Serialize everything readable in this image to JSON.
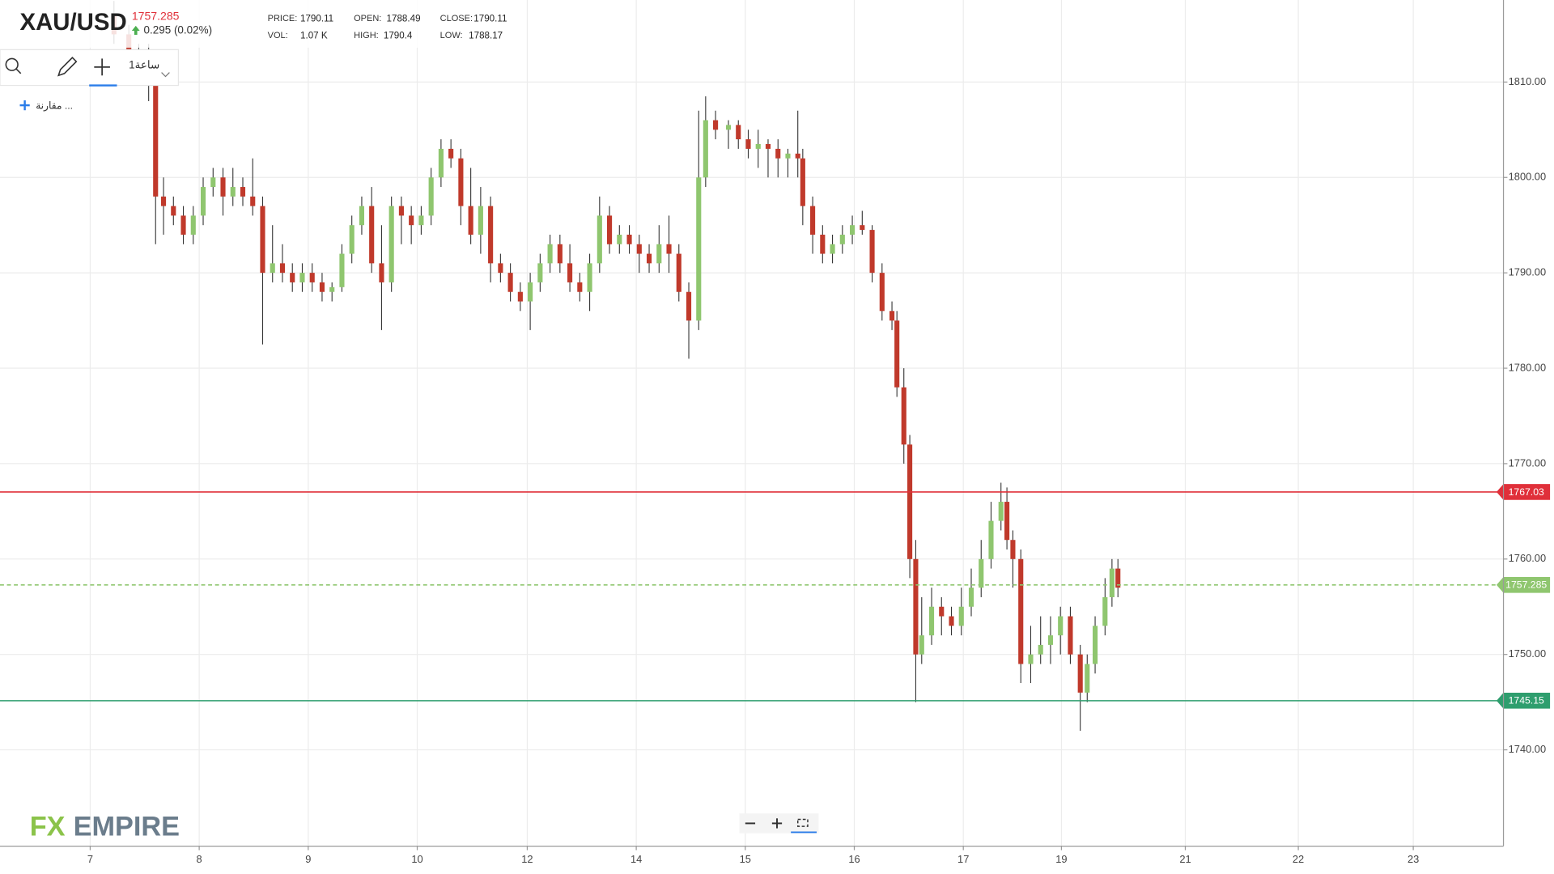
{
  "header": {
    "symbol": "XAU/USD",
    "last": 1757.285,
    "change": "0.295 (0.02%)",
    "stats": [
      {
        "label": "PRICE:",
        "value": 1790.11
      },
      {
        "label": "OPEN:",
        "value": 1788.49
      },
      {
        "label": "CLOSE:",
        "value": 1790.11
      },
      {
        "label": "VOL:",
        "value": "1.07 K"
      },
      {
        "label": "HIGH:",
        "value": 1790.4
      },
      {
        "label": "LOW:",
        "value": 1788.17
      }
    ]
  },
  "toolbar": {
    "interval": "1ساعة",
    "compare": "مقارنة ..."
  },
  "logo": [
    "FX",
    "EMPIRE"
  ],
  "chart_data": {
    "type": "candlestick",
    "up_color": "#8fc66f",
    "down_color": "#c0392b",
    "grid": true,
    "xlim": [
      0,
      1517
    ],
    "ylim": [
      1729.9,
      1818.6
    ],
    "xticks": [
      {
        "value": 91,
        "label": "7"
      },
      {
        "value": 201,
        "label": "8"
      },
      {
        "value": 311,
        "label": "9"
      },
      {
        "value": 421,
        "label": "10"
      },
      {
        "value": 532,
        "label": "12"
      },
      {
        "value": 642,
        "label": "14"
      },
      {
        "value": 752,
        "label": "15"
      },
      {
        "value": 862,
        "label": "16"
      },
      {
        "value": 972,
        "label": "17"
      },
      {
        "value": 1071,
        "label": "19"
      },
      {
        "value": 1196,
        "label": "21"
      },
      {
        "value": 1310,
        "label": "22"
      },
      {
        "value": 1426,
        "label": "23"
      }
    ],
    "yticks": [
      {
        "value": 1740,
        "label": "1740.00"
      },
      {
        "value": 1750,
        "label": "1750.00"
      },
      {
        "value": 1760,
        "label": "1760.00"
      },
      {
        "value": 1770,
        "label": "1770.00"
      },
      {
        "value": 1780,
        "label": "1780.00"
      },
      {
        "value": 1790,
        "label": "1790.00"
      },
      {
        "value": 1800,
        "label": "1800.00"
      },
      {
        "value": 1810,
        "label": "1810.00"
      }
    ],
    "levels": [
      {
        "value": 1767.03,
        "color": "#e0303a",
        "style": "solid"
      },
      {
        "value": 1757.285,
        "color": "#8fc66f",
        "style": "dashed"
      },
      {
        "value": 1745.15,
        "color": "#2e9e6e",
        "style": "solid"
      }
    ],
    "x": [
      115,
      130,
      140,
      150,
      157,
      165,
      175,
      185,
      195,
      205,
      215,
      225,
      235,
      245,
      255,
      265,
      275,
      285,
      295,
      305,
      315,
      325,
      335,
      345,
      355,
      365,
      375,
      385,
      395,
      405,
      415,
      425,
      435,
      445,
      455,
      465,
      475,
      485,
      495,
      505,
      515,
      525,
      535,
      545,
      555,
      565,
      575,
      585,
      595,
      605,
      615,
      625,
      635,
      645,
      655,
      665,
      675,
      685,
      695,
      705,
      712,
      722,
      735,
      745,
      755,
      765,
      775,
      785,
      795,
      805,
      810,
      820,
      830,
      840,
      850,
      860,
      870,
      880,
      890,
      900,
      905,
      912,
      918,
      924,
      930,
      940,
      950,
      960,
      970,
      980,
      990,
      1000,
      1010,
      1016,
      1022,
      1030,
      1040,
      1050,
      1060,
      1070,
      1080,
      1090,
      1097,
      1105,
      1115,
      1122,
      1128
    ],
    "open": [
      1817,
      1815,
      1813,
      1812,
      1810,
      1798,
      1797,
      1796,
      1794,
      1796,
      1799,
      1800,
      1798,
      1799,
      1798,
      1797,
      1790,
      1791,
      1790,
      1789,
      1790,
      1789,
      1788,
      1788.5,
      1792,
      1795,
      1797,
      1791,
      1789,
      1797,
      1796,
      1795,
      1796,
      1800,
      1803,
      1802,
      1797,
      1794,
      1797,
      1791,
      1790,
      1788,
      1787,
      1789,
      1791,
      1793,
      1791,
      1789,
      1788,
      1791,
      1796,
      1793,
      1794,
      1793,
      1792,
      1791,
      1793,
      1792,
      1788,
      1785,
      1800,
      1806,
      1805,
      1805.5,
      1804,
      1803,
      1803.5,
      1803,
      1802,
      1802.5,
      1802,
      1797,
      1794,
      1792,
      1793,
      1794,
      1795,
      1794.5,
      1790,
      1786,
      1785,
      1778,
      1772,
      1760,
      1750,
      1752,
      1755,
      1754,
      1753,
      1755,
      1757,
      1760,
      1764,
      1766,
      1762,
      1760,
      1749,
      1750,
      1751,
      1752,
      1754,
      1750,
      1746,
      1749,
      1753,
      1756,
      1759
    ],
    "high": [
      1818.5,
      1816,
      1814,
      1814,
      1811,
      1800,
      1798,
      1797,
      1797,
      1800,
      1801,
      1801,
      1801,
      1800,
      1802,
      1798,
      1795,
      1793,
      1791,
      1791,
      1791,
      1790,
      1789,
      1793,
      1796,
      1798,
      1799,
      1795,
      1798,
      1798,
      1797,
      1797,
      1801,
      1804,
      1804,
      1803,
      1801,
      1799,
      1798,
      1792,
      1791,
      1789,
      1790,
      1792,
      1794,
      1794,
      1793,
      1790,
      1792,
      1798,
      1797,
      1795,
      1795,
      1794,
      1793,
      1795,
      1796,
      1793,
      1789,
      1807,
      1808.5,
      1807,
      1806,
      1806,
      1805,
      1805,
      1804,
      1804,
      1803,
      1807,
      1803,
      1798,
      1795,
      1794,
      1795,
      1796,
      1796.5,
      1795,
      1791,
      1787,
      1786,
      1780,
      1773,
      1762,
      1756,
      1757,
      1756,
      1755,
      1757,
      1759,
      1762,
      1766,
      1768,
      1767.5,
      1763,
      1761,
      1753,
      1754,
      1754,
      1755,
      1755,
      1751,
      1750,
      1754,
      1758,
      1760,
      1760
    ],
    "low": [
      1814,
      1812,
      1810,
      1808,
      1793,
      1794,
      1795,
      1793,
      1793,
      1795,
      1798,
      1796,
      1797,
      1797,
      1796,
      1782.5,
      1789,
      1789,
      1788,
      1788,
      1788,
      1787,
      1787,
      1788,
      1791,
      1794,
      1790,
      1784,
      1788,
      1793,
      1793,
      1794,
      1795,
      1799,
      1801,
      1795,
      1793,
      1792,
      1789,
      1789,
      1787,
      1786,
      1784,
      1788,
      1790,
      1790,
      1788,
      1787,
      1786,
      1790,
      1792,
      1792,
      1792,
      1790,
      1790,
      1790,
      1790,
      1787,
      1781,
      1784,
      1799,
      1804,
      1803,
      1803,
      1802,
      1801,
      1800,
      1800,
      1800,
      1800,
      1795,
      1792,
      1791,
      1791,
      1792,
      1793,
      1794,
      1789,
      1785,
      1784,
      1777,
      1770,
      1758,
      1745,
      1749,
      1751,
      1752,
      1752,
      1752,
      1754,
      1756,
      1759,
      1763,
      1761,
      1757,
      1747,
      1747,
      1749,
      1749,
      1750,
      1749,
      1742,
      1745,
      1748,
      1752,
      1755,
      1756
    ],
    "close": [
      1815,
      1813,
      1812,
      1810,
      1798,
      1797,
      1796,
      1794,
      1796,
      1799,
      1800,
      1798,
      1799,
      1798,
      1797,
      1790,
      1791,
      1790,
      1789,
      1790,
      1789,
      1788,
      1788.5,
      1792,
      1795,
      1797,
      1791,
      1789,
      1797,
      1796,
      1795,
      1796,
      1800,
      1803,
      1802,
      1797,
      1794,
      1797,
      1791,
      1790,
      1788,
      1787,
      1789,
      1791,
      1793,
      1791,
      1789,
      1788,
      1791,
      1796,
      1793,
      1794,
      1793,
      1792,
      1791,
      1793,
      1792,
      1788,
      1785,
      1800,
      1806,
      1805,
      1805.5,
      1804,
      1803,
      1803.5,
      1803,
      1802,
      1802.5,
      1802,
      1797,
      1794,
      1792,
      1793,
      1794,
      1795,
      1794.5,
      1790,
      1786,
      1785,
      1778,
      1772,
      1760,
      1750,
      1752,
      1755,
      1754,
      1753,
      1755,
      1757,
      1760,
      1764,
      1766,
      1762,
      1760,
      1749,
      1750,
      1751,
      1752,
      1754,
      1750,
      1746,
      1749,
      1753,
      1756,
      1759,
      1757
    ]
  }
}
